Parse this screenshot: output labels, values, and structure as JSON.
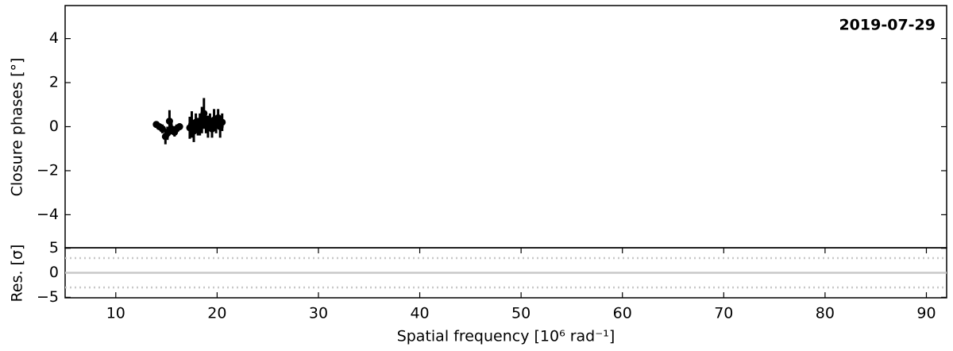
{
  "chart_data": [
    {
      "type": "scatter",
      "annotation": "2019-07-29",
      "y_label": "Closure phases [°]",
      "xlim": [
        5,
        92
      ],
      "ylim": [
        -5.5,
        5.5
      ],
      "yticks": [
        {
          "value": -4,
          "label": "−4"
        },
        {
          "value": -2,
          "label": "−2"
        },
        0,
        2,
        4
      ],
      "series": [
        {
          "color": "#000000",
          "x": [
            14.0,
            14.3,
            14.6,
            14.9,
            15.1,
            15.3,
            15.5,
            15.8,
            16.0,
            16.3,
            17.3,
            17.5,
            17.7,
            17.9,
            18.1,
            18.3,
            18.5,
            18.7,
            18.9,
            19.1,
            19.3,
            19.5,
            19.7,
            19.9,
            20.1,
            20.3,
            20.5
          ],
          "values": [
            0.1,
            0.0,
            -0.1,
            -0.45,
            -0.3,
            0.25,
            -0.1,
            -0.25,
            -0.1,
            0.0,
            -0.05,
            0.1,
            -0.2,
            0.2,
            0.0,
            0.1,
            0.3,
            0.6,
            0.1,
            0.0,
            0.2,
            -0.1,
            0.3,
            0.1,
            0.4,
            0.0,
            0.2
          ],
          "errors": [
            0.15,
            0.1,
            0.2,
            0.35,
            0.3,
            0.5,
            0.25,
            0.2,
            0.2,
            0.15,
            0.5,
            0.6,
            0.5,
            0.4,
            0.4,
            0.5,
            0.6,
            0.7,
            0.4,
            0.5,
            0.4,
            0.4,
            0.5,
            0.4,
            0.4,
            0.5,
            0.4
          ]
        }
      ]
    },
    {
      "type": "residuals",
      "y_label": "Res. [σ]",
      "x_label": "Spatial frequency [10⁶ rad⁻¹]",
      "xlim": [
        5,
        92
      ],
      "ylim": [
        -5.1,
        5.1
      ],
      "xticks": [
        10,
        20,
        30,
        40,
        50,
        60,
        70,
        80,
        90
      ],
      "yticks": [
        {
          "value": -5,
          "label": "−5"
        },
        0,
        5
      ],
      "reference_lines": [
        {
          "value": 0,
          "style": "solid"
        },
        {
          "value": 3,
          "style": "dotted"
        },
        {
          "value": -3,
          "style": "dotted"
        }
      ]
    }
  ]
}
